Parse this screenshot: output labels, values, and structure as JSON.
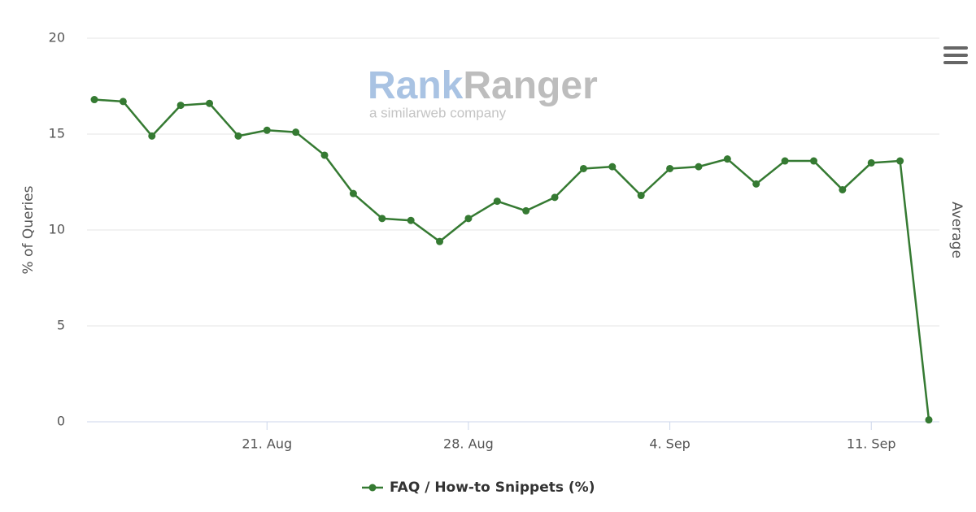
{
  "chart_data": {
    "type": "line",
    "ylabel": "% of Queries",
    "y2label": "Average",
    "watermark": {
      "title": [
        "Rank",
        "Ranger"
      ],
      "subtitle": "a similarweb company"
    },
    "categories": [
      "15. Aug",
      "16. Aug",
      "17. Aug",
      "18. Aug",
      "19. Aug",
      "20. Aug",
      "21. Aug",
      "22. Aug",
      "23. Aug",
      "24. Aug",
      "25. Aug",
      "26. Aug",
      "27. Aug",
      "28. Aug",
      "29. Aug",
      "30. Aug",
      "31. Aug",
      "1. Sep",
      "2. Sep",
      "3. Sep",
      "4. Sep",
      "5. Sep",
      "6. Sep",
      "7. Sep",
      "8. Sep",
      "9. Sep",
      "10. Sep",
      "11. Sep",
      "12. Sep",
      "13. Sep"
    ],
    "xticks": [
      "21. Aug",
      "28. Aug",
      "4. Sep",
      "11. Sep"
    ],
    "series": [
      {
        "name": "FAQ / How-to Snippets (%)",
        "color": "#357a32",
        "values": [
          16.8,
          16.7,
          14.9,
          16.5,
          16.6,
          14.9,
          15.2,
          15.1,
          13.9,
          11.9,
          10.6,
          10.5,
          9.4,
          10.6,
          11.5,
          11.0,
          11.7,
          13.2,
          13.3,
          11.8,
          13.2,
          13.3,
          13.7,
          12.4,
          13.6,
          13.6,
          12.1,
          13.5,
          13.6,
          0.1
        ]
      }
    ],
    "ylim": [
      0,
      20
    ],
    "yticks": [
      0,
      5,
      10,
      15,
      20
    ],
    "grid": true,
    "legend": "bottom"
  }
}
